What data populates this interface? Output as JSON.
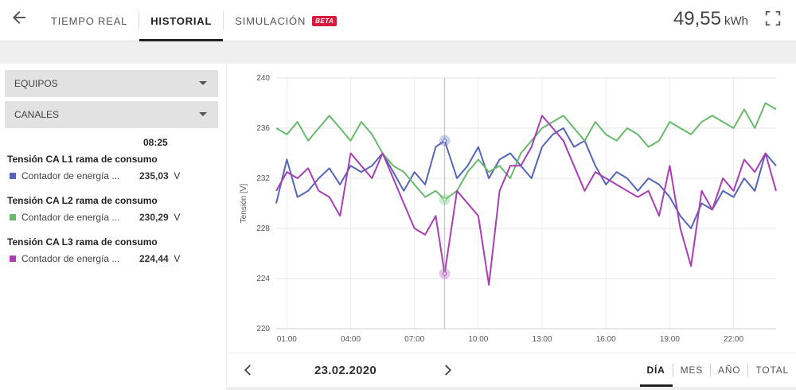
{
  "header": {
    "tabs": [
      {
        "label": "TIEMPO REAL",
        "active": false
      },
      {
        "label": "HISTORIAL",
        "active": true
      },
      {
        "label": "SIMULACIÓN",
        "active": false,
        "badge": "BETA"
      }
    ],
    "energy_value": "49,55",
    "energy_unit": "kWh"
  },
  "sidebar": {
    "dropdowns": [
      "EQUIPOS",
      "CANALES"
    ],
    "time": "08:25",
    "channels": [
      {
        "title": "Tensión CA L1 rama de consumo",
        "device": "Contador de energía ...",
        "value": "235,03",
        "unit": "V",
        "color": "#5566b8"
      },
      {
        "title": "Tensión CA L2 rama de consumo",
        "device": "Contador de energía ...",
        "value": "230,29",
        "unit": "V",
        "color": "#66bb6a"
      },
      {
        "title": "Tensión CA L3 rama de consumo",
        "device": "Contador de energía ...",
        "value": "224,44",
        "unit": "V",
        "color": "#a83fb5"
      }
    ]
  },
  "chart_data": {
    "type": "line",
    "ylabel": "Tensión [V]",
    "ylim": [
      220,
      240
    ],
    "yticks": [
      220,
      224,
      228,
      232,
      236,
      240
    ],
    "xlim": [
      0.5,
      24
    ],
    "xticks": [
      1,
      4,
      7,
      10,
      13,
      16,
      19,
      22
    ],
    "xtick_labels": [
      "01:00",
      "04:00",
      "07:00",
      "10:00",
      "13:00",
      "16:00",
      "19:00",
      "22:00"
    ],
    "grid": true,
    "cursor_x": 8.42,
    "x": [
      0.5,
      1.0,
      1.5,
      2.0,
      2.5,
      3.0,
      3.5,
      4.0,
      4.5,
      5.0,
      5.5,
      6.0,
      6.5,
      7.0,
      7.5,
      8.0,
      8.42,
      9.0,
      9.5,
      10.0,
      10.5,
      11.0,
      11.5,
      12.0,
      12.5,
      13.0,
      13.5,
      14.0,
      14.5,
      15.0,
      15.5,
      16.0,
      16.5,
      17.0,
      17.5,
      18.0,
      18.5,
      19.0,
      19.5,
      20.0,
      20.5,
      21.0,
      21.5,
      22.0,
      22.5,
      23.0,
      23.5,
      24.0
    ],
    "series": [
      {
        "name": "Tensión CA L1 rama de consumo",
        "color": "#5566b8",
        "values": [
          230.0,
          233.5,
          230.5,
          231.0,
          232.0,
          232.8,
          231.5,
          233.0,
          232.5,
          233.0,
          234.0,
          232.5,
          231.0,
          232.5,
          231.5,
          234.5,
          235.0,
          232.0,
          233.0,
          234.5,
          232.0,
          233.5,
          234.0,
          233.0,
          232.0,
          234.5,
          235.5,
          236.0,
          234.5,
          235.0,
          233.0,
          231.5,
          232.5,
          232.0,
          231.0,
          232.0,
          231.5,
          230.5,
          229.0,
          228.0,
          230.0,
          229.5,
          231.0,
          230.5,
          232.0,
          231.0,
          234.0,
          233.0
        ]
      },
      {
        "name": "Tensión CA L2 rama de consumo",
        "color": "#66bb6a",
        "values": [
          236.0,
          235.5,
          236.5,
          235.0,
          236.0,
          237.0,
          236.0,
          235.0,
          236.5,
          235.5,
          234.0,
          233.0,
          232.5,
          231.5,
          230.5,
          231.0,
          230.3,
          231.0,
          232.5,
          233.5,
          232.5,
          233.0,
          232.0,
          234.0,
          235.0,
          236.0,
          236.5,
          237.0,
          236.0,
          235.0,
          236.5,
          235.5,
          235.0,
          236.0,
          235.5,
          234.5,
          235.0,
          236.5,
          236.0,
          235.5,
          236.5,
          237.0,
          236.5,
          236.0,
          237.5,
          236.0,
          238.0,
          237.5
        ]
      },
      {
        "name": "Tensión CA L3 rama de consumo",
        "color": "#a83fb5",
        "values": [
          231.0,
          232.5,
          232.0,
          232.8,
          231.0,
          230.5,
          229.0,
          234.0,
          233.0,
          232.0,
          234.0,
          232.0,
          230.0,
          228.0,
          227.5,
          229.0,
          224.4,
          231.0,
          230.0,
          229.0,
          223.5,
          231.0,
          233.0,
          233.0,
          234.5,
          237.0,
          236.0,
          235.0,
          233.0,
          231.0,
          232.5,
          232.0,
          231.5,
          231.0,
          230.5,
          231.0,
          229.0,
          233.0,
          228.0,
          225.0,
          231.0,
          229.5,
          232.0,
          231.0,
          233.5,
          232.5,
          234.0,
          231.0
        ]
      }
    ]
  },
  "footer": {
    "date": "23.02.2020",
    "periods": [
      {
        "label": "DÍA",
        "active": true
      },
      {
        "label": "MES",
        "active": false
      },
      {
        "label": "AÑO",
        "active": false
      },
      {
        "label": "TOTAL",
        "active": false
      }
    ]
  }
}
